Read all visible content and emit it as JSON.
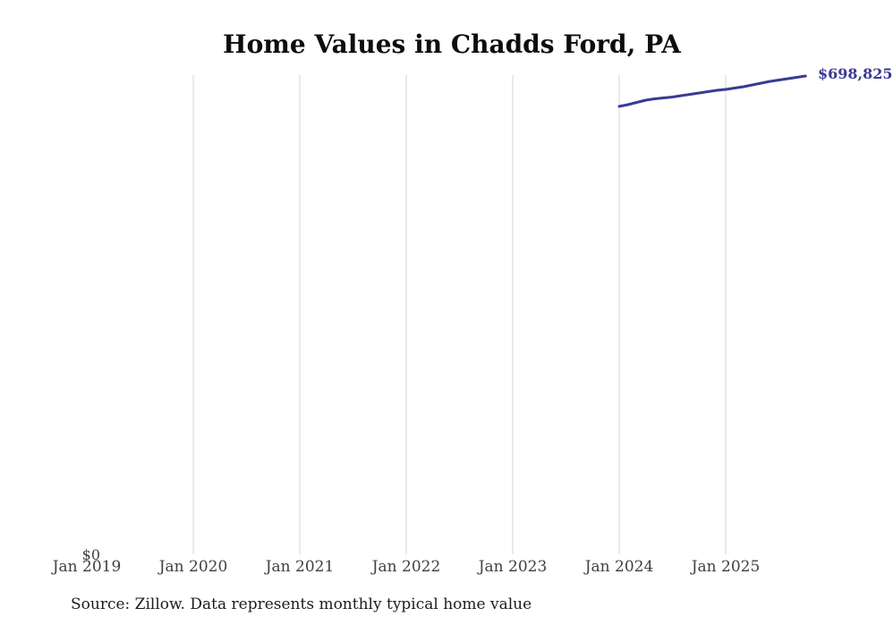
{
  "chart_data": {
    "type": "line",
    "title": "Home Values in Chadds Ford, PA",
    "source_note": "Source: Zillow. Data represents monthly typical home value",
    "y_zero_label": "$0",
    "end_value_label": "$698,825",
    "x_tick_labels": [
      "Jan 2019",
      "Jan 2020",
      "Jan 2021",
      "Jan 2022",
      "Jan 2023",
      "Jan 2024",
      "Jan 2025"
    ],
    "grid": "vertical-only",
    "legend": "none",
    "xlabel": "",
    "ylabel": "",
    "ylim": [
      0,
      710000
    ],
    "series": [
      {
        "name": "Monthly typical home value",
        "x": [
          "2024-01",
          "2024-02",
          "2024-03",
          "2024-04",
          "2024-05",
          "2024-06",
          "2024-07",
          "2024-08",
          "2024-09",
          "2024-10",
          "2024-11",
          "2024-12",
          "2025-01",
          "2025-02",
          "2025-03",
          "2025-04",
          "2025-05",
          "2025-06",
          "2025-07",
          "2025-08",
          "2025-09",
          "2025-10"
        ],
        "values": [
          654600,
          657200,
          660400,
          663700,
          665600,
          666900,
          668200,
          670200,
          672100,
          674100,
          676000,
          678000,
          679300,
          681200,
          683200,
          685800,
          688400,
          691000,
          693000,
          694900,
          696900,
          698825
        ]
      }
    ],
    "colors": {
      "line": "#3a3a94",
      "grid": "#d4d4d4",
      "tick_label": "#404040",
      "title": "#0d0d0d",
      "end_label": "#3a3a94",
      "source": "#1c1c1c"
    }
  }
}
